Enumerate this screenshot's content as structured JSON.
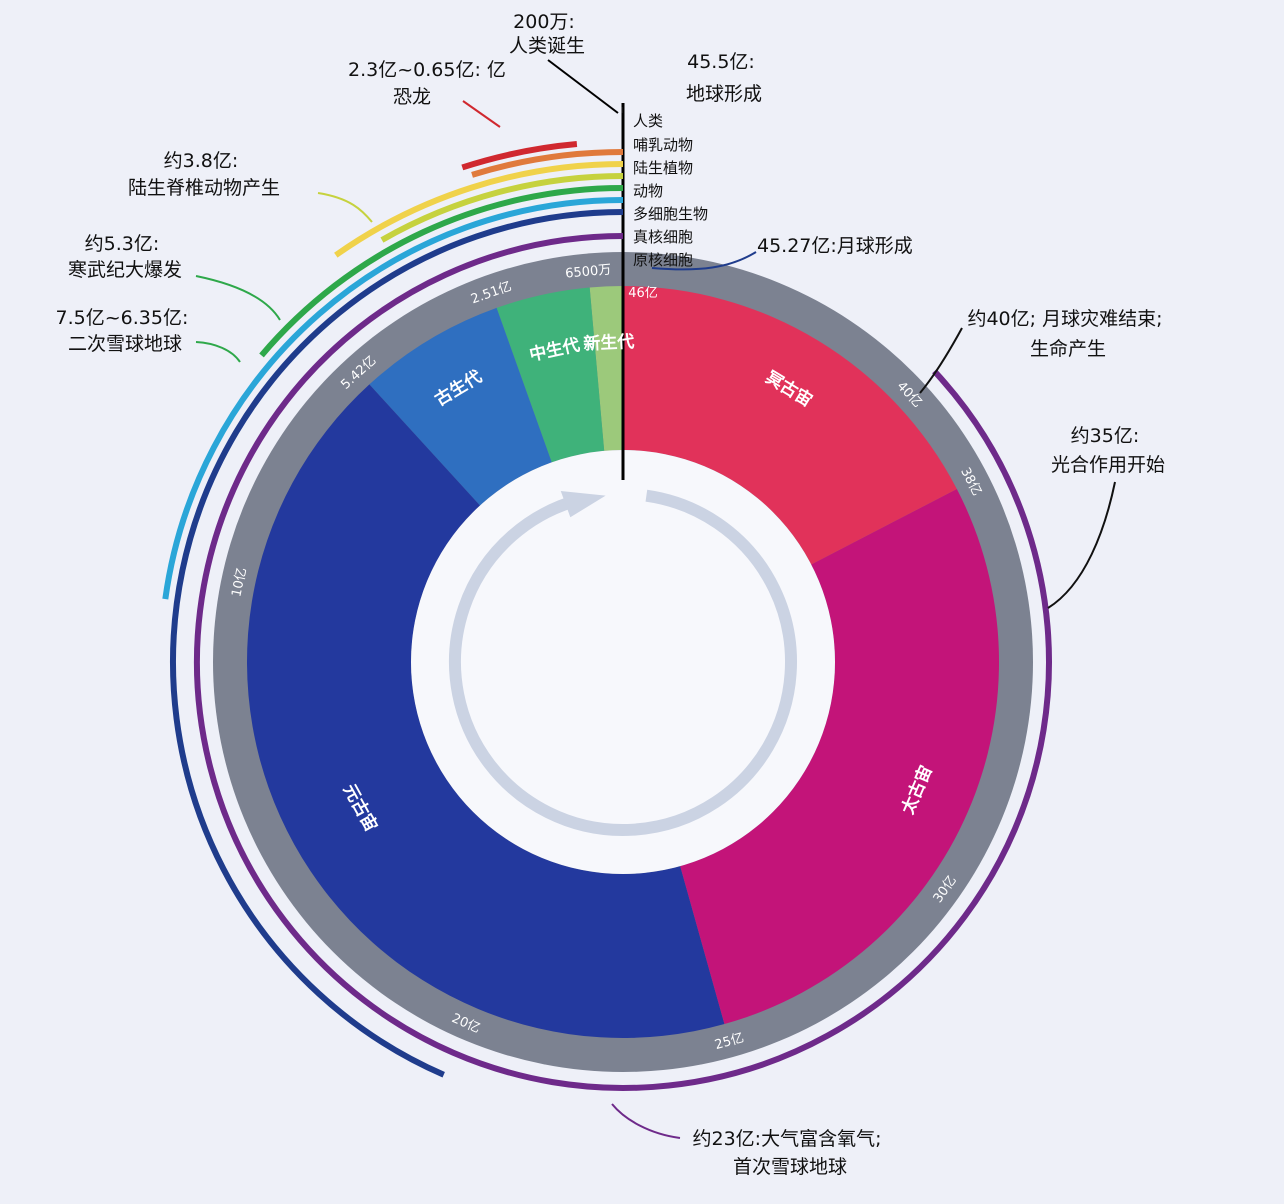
{
  "eons": [
    {
      "id": "cenozoic",
      "label": "新生代",
      "from": 0,
      "to": 0.65,
      "color": "#9cc97b"
    },
    {
      "id": "mesozoic",
      "label": "中生代",
      "from": 0.65,
      "to": 2.51,
      "color": "#3fb27a"
    },
    {
      "id": "paleozoic",
      "label": "古生代",
      "from": 2.51,
      "to": 5.42,
      "color": "#2f6fc0"
    },
    {
      "id": "proterozoic",
      "label": "元古宙",
      "from": 5.42,
      "to": 25,
      "color": "#23399e"
    },
    {
      "id": "archean",
      "label": "太古宙",
      "from": 25,
      "to": 38,
      "color": "#c31479"
    },
    {
      "id": "hadean",
      "label": "冥古宙",
      "from": 38,
      "to": 46,
      "color": "#e1325a"
    }
  ],
  "ticks": [
    {
      "id": "t0",
      "label": "46亿",
      "value": 0
    },
    {
      "id": "t1",
      "label": "6500万",
      "value": 0.65
    },
    {
      "id": "t2",
      "label": "2.51亿",
      "value": 2.51
    },
    {
      "id": "t3",
      "label": "5.42亿",
      "value": 5.42
    },
    {
      "id": "t4",
      "label": "10亿",
      "value": 10
    },
    {
      "id": "t5",
      "label": "20亿",
      "value": 20
    },
    {
      "id": "t6",
      "label": "25亿",
      "value": 25
    },
    {
      "id": "t7",
      "label": "30亿",
      "value": 30
    },
    {
      "id": "t8",
      "label": "38亿",
      "value": 38
    },
    {
      "id": "t9",
      "label": "40亿",
      "value": 40
    }
  ],
  "life_arcs": [
    {
      "id": "human",
      "label": "人类",
      "span": 0.02,
      "color": "#111111"
    },
    {
      "id": "dinosaur",
      "label": "",
      "from": 0.65,
      "to": 2.3,
      "color": "#d0282f"
    },
    {
      "id": "mammal",
      "label": "哺乳动物",
      "span": 2.2,
      "color": "#e07a3c"
    },
    {
      "id": "land-plant",
      "label": "陆生植物",
      "span": 4.5,
      "color": "#f0d24a"
    },
    {
      "id": "land-vertebrate",
      "label": "",
      "span": 3.8,
      "color": "#c6d23e"
    },
    {
      "id": "animal",
      "label": "动物",
      "span": 6.35,
      "color": "#2ea84a"
    },
    {
      "id": "multicellular",
      "label": "多细胞生物",
      "span": 10.5,
      "color": "#2aa6d8"
    },
    {
      "id": "eukaryote",
      "label": "真核细胞",
      "span": 20,
      "color": "#1f3c8c"
    },
    {
      "id": "prokaryote",
      "label": "原核细胞",
      "span": 35,
      "color": "#6e2a8a"
    }
  ],
  "annotations": {
    "human_birth": {
      "line1": "200万:",
      "line2": "人类诞生"
    },
    "earth_form": {
      "line1": "45.5亿:",
      "line2": "地球形成"
    },
    "dinosaur": {
      "line1": "2.3亿~0.65亿: 亿",
      "line2": "恐龙"
    },
    "land_vertebrate": {
      "line1": "约3.8亿:",
      "line2": "陆生脊椎动物产生"
    },
    "cambrian": {
      "line1": "约5.3亿:",
      "line2": "寒武纪大爆发"
    },
    "snowball2": {
      "line1": "7.5亿~6.35亿:",
      "line2": "二次雪球地球"
    },
    "moon_form": {
      "line1": "45.27亿:月球形成"
    },
    "moon_end": {
      "line1": "约40亿; 月球灾难结束;",
      "line2": "生命产生"
    },
    "photosynthesis": {
      "line1": "约35亿:",
      "line2": "光合作用开始"
    },
    "oxygen": {
      "line1": "约23亿:大气富含氧气;",
      "line2": "首次雪球地球"
    }
  },
  "colors": {
    "background": "#eef0f8",
    "tick_ring": "#7c8291",
    "inner_white": "#f7f8fc",
    "arrow": "#cbd3e3"
  }
}
